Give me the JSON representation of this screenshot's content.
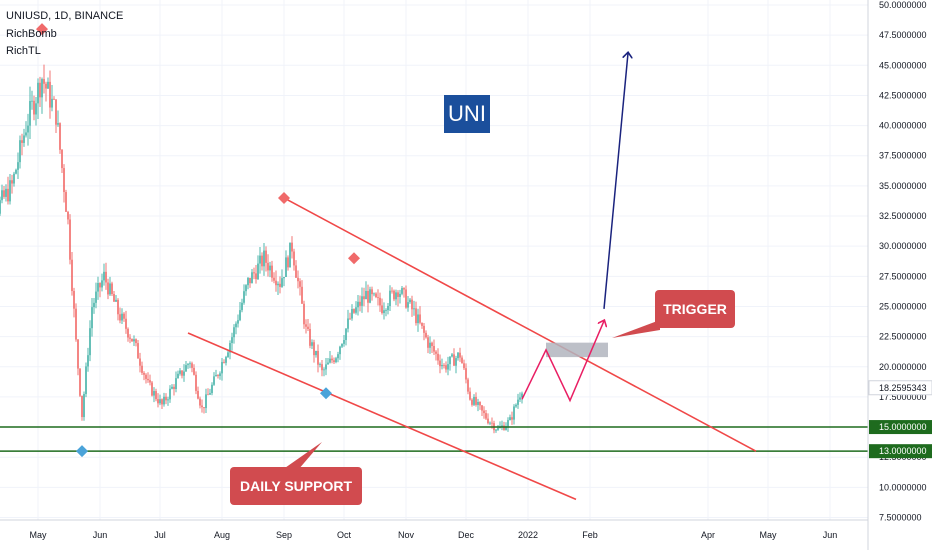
{
  "header": {
    "symbol_line": "UNIUSD, 1D, BINANCE",
    "indicator1": "RichBomb",
    "indicator2": "RichTL"
  },
  "badge": {
    "label": "UNI"
  },
  "callouts": {
    "trigger": "TRIGGER",
    "support": "DAILY SUPPORT"
  },
  "colors": {
    "up": "#26a69a",
    "down": "#ef5350",
    "trendline": "#f04848",
    "support": "#1e6b1e",
    "projection": "#e91e63",
    "target": "#1a237e",
    "badge": "#1b4f9c",
    "callout": "#d14b4f"
  },
  "chart_data": {
    "type": "candlestick",
    "x_ticks": [
      "May",
      "Jun",
      "Jul",
      "Aug",
      "Sep",
      "Oct",
      "Nov",
      "Dec",
      "2022",
      "Feb",
      "Apr",
      "May",
      "Jun"
    ],
    "y_ticks": [
      "7.5000000",
      "10.0000000",
      "12.5000000",
      "15.0000000",
      "17.5000000",
      "20.0000000",
      "22.5000000",
      "25.0000000",
      "27.5000000",
      "30.0000000",
      "32.5000000",
      "35.0000000",
      "37.5000000",
      "40.0000000",
      "42.5000000",
      "45.0000000",
      "47.5000000",
      "50.0000000"
    ],
    "ylim": [
      7.5,
      50
    ],
    "last_price": "18.2595343",
    "support_levels": [
      {
        "value": 15.0,
        "label": "15.0000000"
      },
      {
        "value": 13.0,
        "label": "13.0000000"
      }
    ],
    "trendlines": [
      {
        "from": [
          "2021-09-01",
          34.0
        ],
        "to": [
          "2022-04-25",
          13.0
        ]
      },
      {
        "from": [
          "2021-07-15",
          22.8
        ],
        "to": [
          "2022-01-25",
          9.0
        ]
      }
    ],
    "trigger_zone": {
      "from": "2022-01-10",
      "to": "2022-02-10",
      "low": 20.8,
      "high": 22.0
    },
    "projection": [
      [
        "2021-12-29",
        17.3
      ],
      [
        "2022-01-10",
        21.4
      ],
      [
        "2022-01-22",
        17.2
      ],
      [
        "2022-02-08",
        23.8
      ]
    ],
    "target_arrow": {
      "from": [
        "2022-02-08",
        24.8
      ],
      "to": [
        "2022-02-20",
        46.0
      ]
    },
    "markers": [
      {
        "type": "top",
        "date": "2021-05-03",
        "value": 48.0
      },
      {
        "type": "bottom",
        "date": "2021-05-23",
        "value": 13.0
      },
      {
        "type": "top",
        "date": "2021-09-01",
        "value": 34.0
      },
      {
        "type": "bottom",
        "date": "2021-09-22",
        "value": 17.8
      },
      {
        "type": "top",
        "date": "2021-10-06",
        "value": 29.0
      }
    ],
    "price_path": [
      [
        "2021-04-02",
        37.0
      ],
      [
        "2021-04-10",
        33.0
      ],
      [
        "2021-04-18",
        35.0
      ],
      [
        "2021-04-25",
        40.0
      ],
      [
        "2021-05-03",
        44.0
      ],
      [
        "2021-05-10",
        41.0
      ],
      [
        "2021-05-16",
        32.0
      ],
      [
        "2021-05-20",
        22.0
      ],
      [
        "2021-05-23",
        16.0
      ],
      [
        "2021-05-28",
        25.0
      ],
      [
        "2021-06-03",
        27.5
      ],
      [
        "2021-06-10",
        24.5
      ],
      [
        "2021-06-18",
        22.0
      ],
      [
        "2021-06-25",
        18.5
      ],
      [
        "2021-07-02",
        16.8
      ],
      [
        "2021-07-09",
        18.8
      ],
      [
        "2021-07-16",
        20.5
      ],
      [
        "2021-07-22",
        16.5
      ],
      [
        "2021-07-30",
        19.5
      ],
      [
        "2021-08-06",
        22.5
      ],
      [
        "2021-08-14",
        27.0
      ],
      [
        "2021-08-22",
        29.0
      ],
      [
        "2021-08-30",
        27.0
      ],
      [
        "2021-09-05",
        30.0
      ],
      [
        "2021-09-12",
        23.0
      ],
      [
        "2021-09-20",
        19.5
      ],
      [
        "2021-09-27",
        21.0
      ],
      [
        "2021-10-04",
        24.0
      ],
      [
        "2021-10-12",
        26.0
      ],
      [
        "2021-10-20",
        25.0
      ],
      [
        "2021-10-28",
        26.5
      ],
      [
        "2021-11-05",
        24.5
      ],
      [
        "2021-11-12",
        22.0
      ],
      [
        "2021-11-20",
        20.0
      ],
      [
        "2021-11-28",
        21.0
      ],
      [
        "2021-12-03",
        17.5
      ],
      [
        "2021-12-10",
        16.0
      ],
      [
        "2021-12-17",
        14.8
      ],
      [
        "2021-12-23",
        15.5
      ],
      [
        "2021-12-29",
        18.26
      ]
    ]
  }
}
